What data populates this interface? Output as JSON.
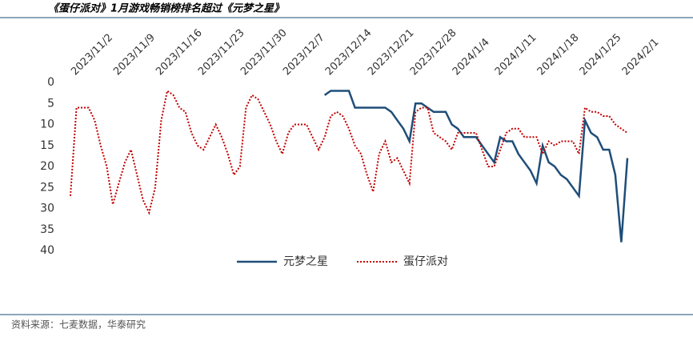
{
  "chart_data": {
    "type": "line",
    "title": "《蛋仔派对》1月游戏畅销榜排名超过《元梦之星》",
    "source": "资料来源：七麦数据，华泰研究",
    "categories": [
      null,
      "2023/11/2",
      null,
      null,
      null,
      null,
      null,
      null,
      "2023/11/9",
      null,
      null,
      null,
      null,
      null,
      null,
      "2023/11/16",
      null,
      null,
      null,
      null,
      null,
      null,
      "2023/11/23",
      null,
      null,
      null,
      null,
      null,
      null,
      "2023/11/30",
      null,
      null,
      null,
      null,
      null,
      null,
      "2023/12/7",
      null,
      null,
      null,
      null,
      null,
      null,
      "2023/12/14",
      null,
      null,
      null,
      null,
      null,
      null,
      "2023/12/21",
      null,
      null,
      null,
      null,
      null,
      null,
      "2023/12/28",
      null,
      null,
      null,
      null,
      null,
      null,
      "2024/1/4",
      null,
      null,
      null,
      null,
      null,
      null,
      "2024/1/11",
      null,
      null,
      null,
      null,
      null,
      null,
      "2024/1/18",
      null,
      null,
      null,
      null,
      null,
      null,
      "2024/1/25",
      null,
      null,
      null,
      null,
      null,
      null,
      "2024/2/1"
    ],
    "series": [
      {
        "name": "元梦之星",
        "color": "#1f4e79",
        "dash": "solid",
        "values": [
          null,
          null,
          null,
          null,
          null,
          null,
          null,
          null,
          null,
          null,
          null,
          null,
          null,
          null,
          null,
          null,
          null,
          null,
          null,
          null,
          null,
          null,
          null,
          null,
          null,
          null,
          null,
          null,
          null,
          null,
          null,
          null,
          null,
          null,
          null,
          null,
          null,
          null,
          null,
          null,
          null,
          null,
          3,
          2,
          2,
          2,
          2,
          6,
          6,
          6,
          6,
          6,
          6,
          7,
          9,
          11,
          14,
          5,
          5,
          6,
          7,
          7,
          7,
          10,
          11,
          13,
          13,
          13,
          15,
          17,
          19,
          13,
          14,
          14,
          17,
          19,
          21,
          24,
          15,
          19,
          20,
          22,
          23,
          25,
          27,
          9,
          12,
          13,
          16,
          16,
          22,
          38,
          18
        ]
      },
      {
        "name": "蛋仔派对",
        "color": "#c00000",
        "dash": "dotted",
        "values": [
          27,
          6,
          6,
          6,
          9,
          15,
          20,
          29,
          24,
          19,
          16,
          22,
          28,
          31,
          25,
          9,
          2,
          3,
          6,
          7,
          12,
          15,
          16,
          13,
          10,
          13,
          17,
          22,
          20,
          6,
          3,
          4,
          7,
          10,
          14,
          17,
          12,
          10,
          10,
          10,
          13,
          16,
          13,
          8,
          7,
          8,
          11,
          15,
          17,
          22,
          26,
          17,
          14,
          19,
          18,
          21,
          24,
          7,
          6,
          6,
          12,
          13,
          14,
          16,
          12,
          12,
          12,
          12,
          16,
          20,
          20,
          16,
          12,
          11,
          11,
          13,
          13,
          13,
          17,
          14,
          15,
          14,
          14,
          14,
          17,
          6,
          7,
          7,
          8,
          8,
          10,
          11,
          12
        ]
      }
    ],
    "ylim": [
      0,
      40
    ],
    "y_inverted": true,
    "yticks": [
      0,
      5,
      10,
      15,
      20,
      25,
      30,
      35,
      40
    ],
    "grid": false,
    "legend": "bottom"
  }
}
